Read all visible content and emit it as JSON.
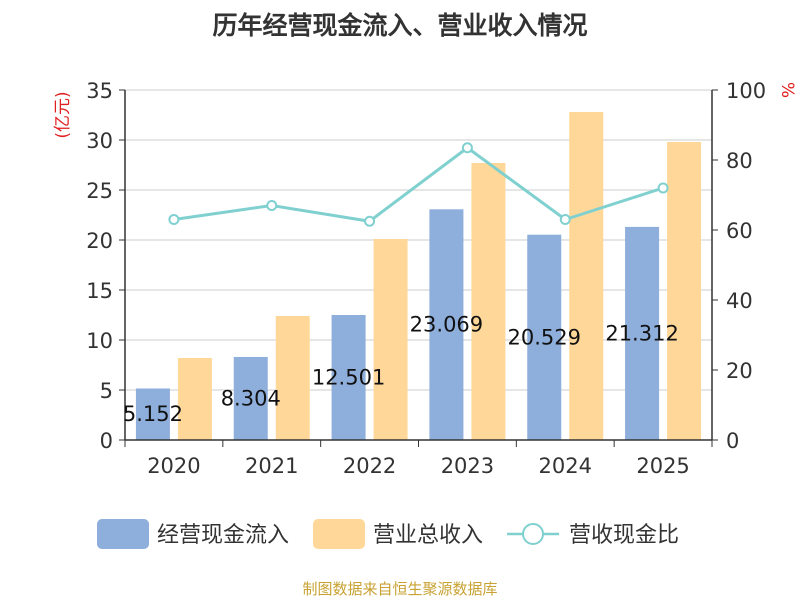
{
  "chart_data": {
    "type": "bar",
    "title": "历年经营现金流入、营业收入情况",
    "categories": [
      "2020",
      "2021",
      "2022",
      "2023",
      "2024",
      "2025"
    ],
    "series": [
      {
        "name": "经营现金流入",
        "type": "bar",
        "axis": "left",
        "color": "#8eaedc",
        "values": [
          5.152,
          8.304,
          12.501,
          23.069,
          20.529,
          21.312
        ],
        "labels": [
          "5.152",
          "8.304",
          "12.501",
          "23.069",
          "20.529",
          "21.312"
        ]
      },
      {
        "name": "营业总收入",
        "type": "bar",
        "axis": "left",
        "color": "#ffd899",
        "values": [
          8.2,
          12.4,
          20.1,
          27.7,
          32.8,
          29.8
        ]
      },
      {
        "name": "营收现金比",
        "type": "line",
        "axis": "right",
        "color": "#80d0d0",
        "values": [
          63,
          67,
          62.5,
          83.5,
          63,
          72
        ]
      }
    ],
    "ylabel": "(亿元)",
    "y2label": "%",
    "ylim": [
      0,
      35
    ],
    "y2lim": [
      0,
      100
    ],
    "yticks": [
      "0",
      "5",
      "10",
      "15",
      "20",
      "25",
      "30",
      "35"
    ],
    "y2ticks": [
      "0",
      "20",
      "40",
      "60",
      "80",
      "100"
    ],
    "legend_position": "bottom",
    "grid": true,
    "source": "制图数据来自恒生聚源数据库"
  }
}
